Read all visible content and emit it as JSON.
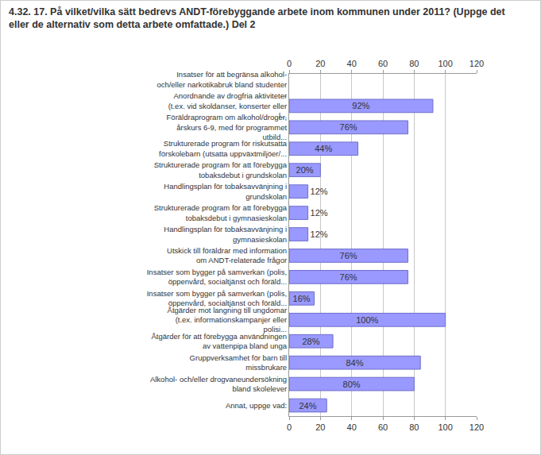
{
  "chart_data": {
    "type": "bar",
    "orientation": "horizontal",
    "title": "4.32. 17. På vilket/vilka sätt bedrevs ANDT-förebyggande arbete inom kommunen under 2011? (Uppge det eller de alternativ som detta arbete omfattade.) Del 2",
    "categories": [
      "Insatser för att begränsa alkohol- och/eller narkotikabruk bland studenter ...",
      "Anordnande av drogfria aktiviteter (t.ex. vid skoldanser, konserter eller l...",
      "Föräldraprogram om alkohol/droger, årskurs 6-9, med för programmet utbild...",
      "Strukturerade program för riskutsatta förskolebarn (utsatta uppväxtmiljöer/...",
      "Strukturerade program för att förebygga tobaksdebut i grundskolan",
      "Handlingsplan för tobaksavvänjning i grundskolan",
      "Strukturerade program för att förebygga tobaksdebut i gymnasieskolan",
      "Handlingsplan för tobaksavvänjning i gymnasieskolan",
      "Utskick till föräldrar med information om ANDT-relaterade frågor",
      "Insatser som bygger på samverkan (polis, öppenvård, socialtjänst och föräld...",
      "Insatser som bygger på samverkan (polis, öppenvård, socialtjänst och föräld...",
      "Åtgärder mot langning till ungdomar (t.ex. informationskampanjer eller polisi...",
      "Åtgärder för att förebygga användningen av vattenpipa bland unga",
      "Gruppverksamhet för barn till missbrukare",
      "Alkohol- och/eller drogvaneundersökning bland skolelever",
      "Annat, uppge vad:"
    ],
    "values": [
      null,
      92,
      76,
      44,
      20,
      12,
      12,
      12,
      76,
      76,
      16,
      100,
      28,
      84,
      80,
      24
    ],
    "value_labels": [
      null,
      "92%",
      "76%",
      "44%",
      "20%",
      "12%",
      "12%",
      "12%",
      "76%",
      "76%",
      "16%",
      "100%",
      "28%",
      "84%",
      "80%",
      "24%"
    ],
    "data_labels": true,
    "color": "#9999ff",
    "xlim": [
      0,
      120
    ],
    "xticks": [
      0,
      20,
      40,
      60,
      80,
      100,
      120
    ],
    "grid": true
  }
}
